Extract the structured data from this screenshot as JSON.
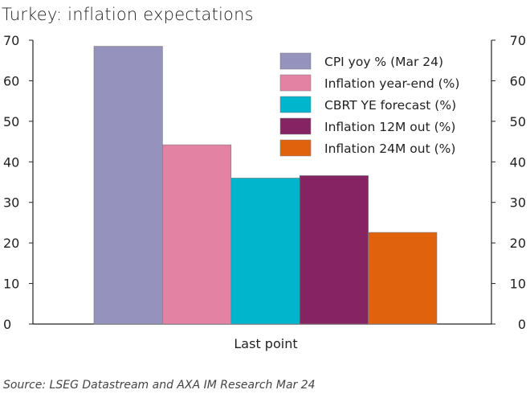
{
  "title": "Turkey: inflation expectations",
  "source": "Source: LSEG Datastream and AXA IM Research Mar 24",
  "chart_data": {
    "type": "bar",
    "categories": [
      "Last point"
    ],
    "xlabel": "",
    "ylabel": "",
    "ylim": [
      0,
      70
    ],
    "y_ticks": [
      0,
      10,
      20,
      30,
      40,
      50,
      60,
      70
    ],
    "secondary_ylim": [
      0,
      70
    ],
    "grid": false,
    "legend_position": "top-right",
    "series": [
      {
        "name": "CPI yoy % (Mar 24)",
        "values": [
          68.5
        ],
        "color": "#9592bd"
      },
      {
        "name": "Inflation year-end (%)",
        "values": [
          44.2
        ],
        "color": "#e382a3"
      },
      {
        "name": "CBRT YE forecast (%)",
        "values": [
          36.0
        ],
        "color": "#00b5cc"
      },
      {
        "name": "Inflation 12M out (%)",
        "values": [
          36.6
        ],
        "color": "#862463"
      },
      {
        "name": "Inflation 24M out (%)",
        "values": [
          22.6
        ],
        "color": "#e0620c"
      }
    ]
  }
}
